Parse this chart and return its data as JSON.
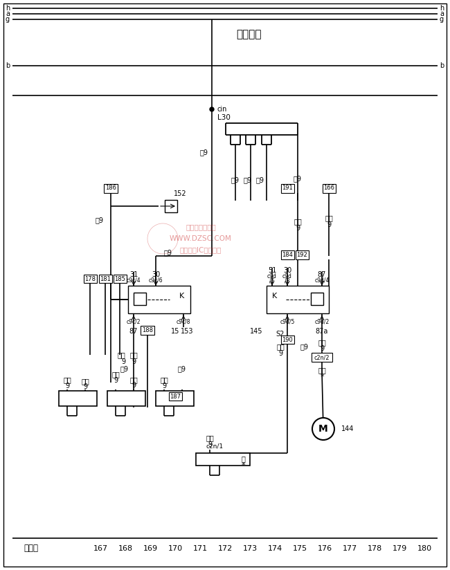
{
  "bg_color": "#ffffff",
  "fig_width": 6.5,
  "fig_height": 8.24,
  "dpi": 100,
  "bottom_label": "线路号",
  "bottom_numbers": [
    "167",
    "168",
    "169",
    "170",
    "171",
    "172",
    "173",
    "174",
    "175",
    "176",
    "177",
    "178",
    "179",
    "180"
  ],
  "bus_label": "中央电力",
  "top_labels": [
    "h",
    "a",
    "g"
  ],
  "b_label": "b",
  "cin_label": "cin",
  "L30_label": "L30"
}
